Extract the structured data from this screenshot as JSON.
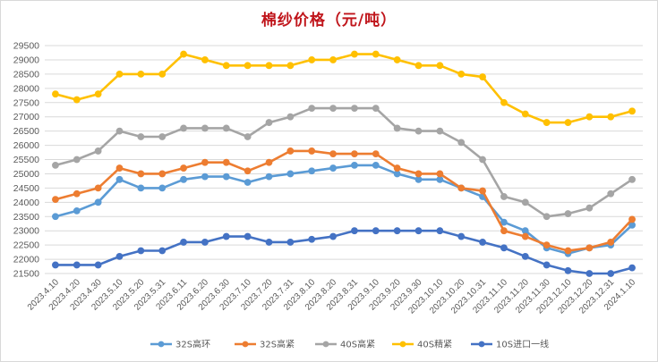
{
  "chart_data": {
    "type": "line",
    "title": "棉纱价格（元/吨）",
    "xlabel": "",
    "ylabel": "",
    "ylim": [
      21500,
      29500
    ],
    "y_ticks": [
      21500,
      22000,
      22500,
      23000,
      23500,
      24000,
      24500,
      25000,
      25500,
      26000,
      26500,
      27000,
      27500,
      28000,
      28500,
      29000,
      29500
    ],
    "grid": "horizontal",
    "legend_position": "bottom",
    "categories": [
      "2023.4.10",
      "2023.4.20",
      "2023.4.30",
      "2023.5.10",
      "2023.5.20",
      "2023.5.31",
      "2023.6.11",
      "2023.6.20",
      "2023.6.30",
      "2023.7.10",
      "2023.7.20",
      "2023.7.31",
      "2023.8.10",
      "2023.8.20",
      "2023.8.31",
      "2023.9.10",
      "2023.9.20",
      "2023.9.30",
      "2023.10.10",
      "2023.10.20",
      "2023.10.31",
      "2023.11.10",
      "2023.11.20",
      "2023.11.30",
      "2023.12.10",
      "2023.12.20",
      "2023.12.31",
      "2024.1.10"
    ],
    "series": [
      {
        "name": "32S高环",
        "color": "#5b9bd5",
        "values": [
          23500,
          23700,
          24000,
          24800,
          24500,
          24500,
          24800,
          24900,
          24900,
          24700,
          24900,
          25000,
          25100,
          25200,
          25300,
          25300,
          25000,
          24800,
          24800,
          24500,
          24200,
          23300,
          23000,
          22400,
          22200,
          22400,
          22500,
          23200
        ]
      },
      {
        "name": "32S高紧",
        "color": "#ed7d31",
        "values": [
          24100,
          24300,
          24500,
          25200,
          25000,
          25000,
          25200,
          25400,
          25400,
          25100,
          25400,
          25800,
          25800,
          25700,
          25700,
          25700,
          25200,
          25000,
          25000,
          24500,
          24400,
          23000,
          22800,
          22500,
          22300,
          22400,
          22600,
          23400
        ]
      },
      {
        "name": "40S高紧",
        "color": "#a5a5a5",
        "values": [
          25300,
          25500,
          25800,
          26500,
          26300,
          26300,
          26600,
          26600,
          26600,
          26300,
          26800,
          27000,
          27300,
          27300,
          27300,
          27300,
          26600,
          26500,
          26500,
          26100,
          25500,
          24200,
          24000,
          23500,
          23600,
          23800,
          24300,
          24800
        ]
      },
      {
        "name": "40S精紧",
        "color": "#ffc000",
        "values": [
          27800,
          27600,
          27800,
          28500,
          28500,
          28500,
          29200,
          29000,
          28800,
          28800,
          28800,
          28800,
          29000,
          29000,
          29200,
          29200,
          29000,
          28800,
          28800,
          28500,
          28400,
          27500,
          27100,
          26800,
          26800,
          27000,
          27000,
          27200
        ]
      },
      {
        "name": "10S进口一线",
        "color": "#4472c4",
        "values": [
          21800,
          21800,
          21800,
          22100,
          22300,
          22300,
          22600,
          22600,
          22800,
          22800,
          22600,
          22600,
          22700,
          22800,
          23000,
          23000,
          23000,
          23000,
          23000,
          22800,
          22600,
          22400,
          22100,
          21800,
          21600,
          21500,
          21500,
          21700
        ]
      }
    ]
  }
}
